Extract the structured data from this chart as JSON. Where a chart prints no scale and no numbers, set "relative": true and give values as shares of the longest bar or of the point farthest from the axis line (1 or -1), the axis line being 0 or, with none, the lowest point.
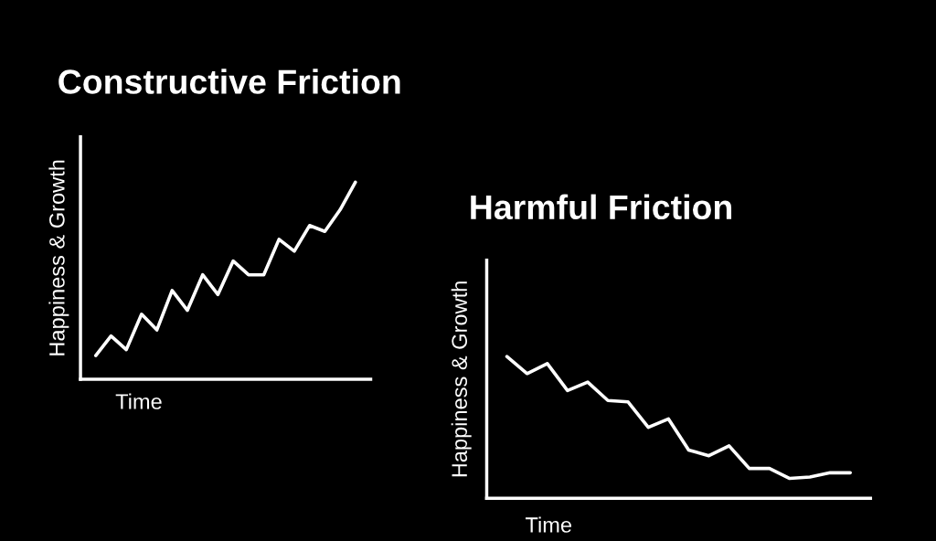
{
  "chart_data": [
    {
      "type": "line",
      "title": "Constructive Friction",
      "xlabel": "Time",
      "ylabel": "Happiness & Growth",
      "relative": true,
      "categories": [
        null,
        null,
        null,
        null,
        null,
        null,
        null,
        null,
        null,
        null,
        null,
        null,
        null,
        null,
        null,
        null,
        null,
        null
      ],
      "series": [
        {
          "color": "#ffffff",
          "values": [
            0.12,
            0.22,
            0.15,
            0.33,
            0.25,
            0.45,
            0.35,
            0.53,
            0.43,
            0.6,
            0.53,
            0.53,
            0.71,
            0.65,
            0.78,
            0.75,
            0.86,
            1.0
          ]
        }
      ]
    },
    {
      "type": "line",
      "title": "Harmful Friction",
      "xlabel": "Time",
      "ylabel": "Happiness & Growth",
      "relative": true,
      "categories": [
        null,
        null,
        null,
        null,
        null,
        null,
        null,
        null,
        null,
        null,
        null,
        null,
        null,
        null,
        null,
        null,
        null,
        null
      ],
      "series": [
        {
          "color": "#ffffff",
          "values": [
            1.0,
            0.88,
            0.95,
            0.76,
            0.82,
            0.69,
            0.68,
            0.5,
            0.56,
            0.34,
            0.3,
            0.37,
            0.21,
            0.21,
            0.14,
            0.15,
            0.18,
            0.18
          ]
        }
      ]
    }
  ]
}
